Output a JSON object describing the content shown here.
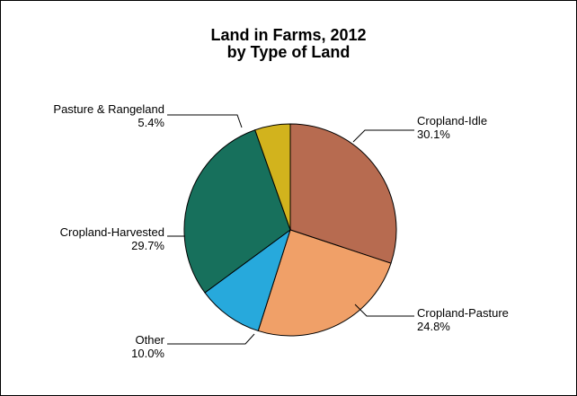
{
  "chart_data": {
    "type": "pie",
    "title": "Land in Farms, 2012",
    "subtitle": "by Type of Land",
    "slices": [
      {
        "label": "Cropland-Idle",
        "value": 30.1,
        "value_label": "30.1%",
        "color": "#b76b50"
      },
      {
        "label": "Cropland-Pasture",
        "value": 24.8,
        "value_label": "24.8%",
        "color": "#f0a068"
      },
      {
        "label": "Other",
        "value": 10.0,
        "value_label": "10.0%",
        "color": "#27a9dc"
      },
      {
        "label": "Cropland-Harvested",
        "value": 29.7,
        "value_label": "29.7%",
        "color": "#17705c"
      },
      {
        "label": "Pasture & Rangeland",
        "value": 5.4,
        "value_label": "5.4%",
        "color": "#d2b31d"
      }
    ]
  }
}
